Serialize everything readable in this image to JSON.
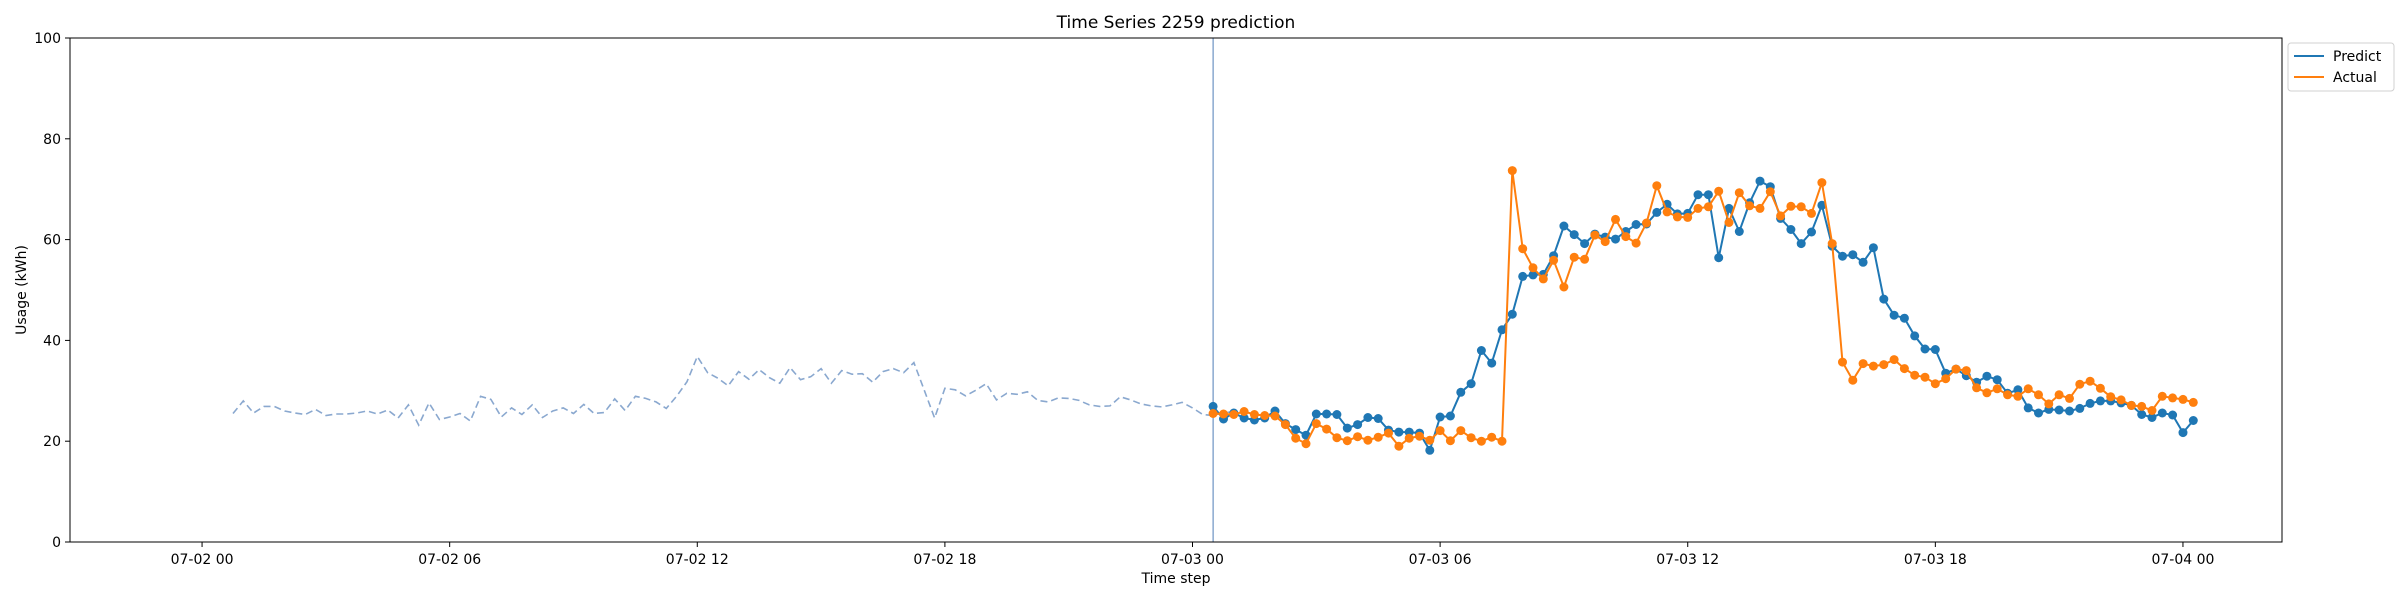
{
  "chart_data": {
    "type": "line",
    "title": "Time Series 2259 prediction",
    "xlabel": "Time step",
    "ylabel": "Usage (kWh)",
    "ylim": [
      0,
      100
    ],
    "yticks": [
      0,
      20,
      40,
      60,
      80,
      100
    ],
    "xlim_hours": [
      -3.2,
      50.4
    ],
    "xticks": [
      {
        "label": "07-02 00",
        "hour": 0
      },
      {
        "label": "07-02 06",
        "hour": 6
      },
      {
        "label": "07-02 12",
        "hour": 12
      },
      {
        "label": "07-02 18",
        "hour": 18
      },
      {
        "label": "07-03 00",
        "hour": 24
      },
      {
        "label": "07-03 06",
        "hour": 30
      },
      {
        "label": "07-03 12",
        "hour": 36
      },
      {
        "label": "07-03 18",
        "hour": 42
      },
      {
        "label": "07-04 00",
        "hour": 48
      }
    ],
    "x_start": "07-02 00:45",
    "x_step_hours": 0.25,
    "grid": false,
    "legend_position": "top-right",
    "forecast_start_hour": 24.5,
    "history": {
      "start_hour": 0.75,
      "step_hours": 0.25,
      "style": "dashed",
      "color": "#8aa8cf",
      "values": [
        25.5,
        28.0,
        25.6,
        26.9,
        26.9,
        26.0,
        25.6,
        25.3,
        26.3,
        25.1,
        25.4,
        25.4,
        25.6,
        26.0,
        25.4,
        26.2,
        24.6,
        27.2,
        23.2,
        27.6,
        24.3,
        24.8,
        25.5,
        24.0,
        28.9,
        28.3,
        24.8,
        26.6,
        25.3,
        27.2,
        24.7,
        26.0,
        26.6,
        25.5,
        27.3,
        25.5,
        25.7,
        28.4,
        26.1,
        28.9,
        28.5,
        27.8,
        26.5,
        28.9,
        31.8,
        36.8,
        33.6,
        32.5,
        31.0,
        33.8,
        32.3,
        34.2,
        32.6,
        31.5,
        34.6,
        32.2,
        32.8,
        34.4,
        31.5,
        34.0,
        33.3,
        33.4,
        31.7,
        33.8,
        34.4,
        33.6,
        35.6,
        30.1,
        24.6,
        30.5,
        30.2,
        29.0,
        30.1,
        31.4,
        28.2,
        29.5,
        29.3,
        29.8,
        28.1,
        27.8,
        28.6,
        28.5,
        28.1,
        27.2,
        26.9,
        27.0,
        28.8,
        28.2,
        27.4,
        27.0,
        26.8,
        27.2,
        27.7,
        26.6,
        25.3,
        25.1,
        25.7,
        25.8
      ]
    },
    "series": [
      {
        "name": "Predict",
        "color": "#1f77b4",
        "start_hour": 24.5,
        "step_hours": 0.25,
        "values": [
          26.9,
          24.4,
          25.6,
          24.6,
          24.2,
          24.6,
          26.0,
          23.5,
          22.3,
          21.2,
          25.4,
          25.4,
          25.3,
          22.6,
          23.3,
          24.7,
          24.5,
          22.2,
          21.8,
          21.8,
          21.6,
          18.2,
          24.8,
          25.0,
          29.7,
          31.4,
          38.0,
          35.5,
          42.1,
          45.2,
          52.7,
          53.0,
          53.1,
          56.8,
          62.7,
          61.0,
          59.2,
          61.1,
          60.5,
          60.1,
          61.6,
          63.0,
          63.1,
          65.4,
          67.0,
          65.1,
          65.2,
          68.9,
          68.9,
          56.4,
          66.2,
          61.6,
          67.3,
          71.6,
          70.5,
          64.2,
          62.0,
          59.2,
          61.5,
          66.8,
          58.7,
          56.7,
          57.0,
          55.5,
          58.4,
          48.2,
          45.0,
          44.4,
          40.9,
          38.3,
          38.2,
          33.5,
          34.3,
          33.0,
          31.7,
          32.9,
          32.2,
          29.5,
          30.2,
          26.6,
          25.6,
          26.3,
          26.2,
          26.0,
          26.5,
          27.5,
          28.0,
          28.0,
          27.6,
          27.1,
          25.3,
          24.7,
          25.6,
          25.2,
          21.7,
          24.1
        ]
      },
      {
        "name": "Actual",
        "color": "#ff7f0e",
        "start_hour": 24.5,
        "step_hours": 0.25,
        "values": [
          25.5,
          25.4,
          25.3,
          25.9,
          25.3,
          25.1,
          25.0,
          23.3,
          20.6,
          19.5,
          23.5,
          22.4,
          20.7,
          20.1,
          20.9,
          20.2,
          20.8,
          21.6,
          19.0,
          20.6,
          21.0,
          20.2,
          22.1,
          20.1,
          22.1,
          20.7,
          20.0,
          20.8,
          20.0,
          73.7,
          58.2,
          54.4,
          52.2,
          55.9,
          50.6,
          56.5,
          56.1,
          60.9,
          59.6,
          64.0,
          60.6,
          59.3,
          63.3,
          70.7,
          65.5,
          64.5,
          64.4,
          66.2,
          66.5,
          69.6,
          63.4,
          69.3,
          66.7,
          66.2,
          69.5,
          64.7,
          66.6,
          66.5,
          65.2,
          71.3,
          59.2,
          35.7,
          32.1,
          35.4,
          34.9,
          35.2,
          36.2,
          34.4,
          33.1,
          32.7,
          31.4,
          32.4,
          34.3,
          34.0,
          30.6,
          29.6,
          30.4,
          29.2,
          28.9,
          30.4,
          29.2,
          27.4,
          29.2,
          28.5,
          31.3,
          31.9,
          30.5,
          28.8,
          28.2,
          27.1,
          26.9,
          26.1,
          28.9,
          28.6,
          28.3,
          27.7
        ]
      }
    ]
  }
}
